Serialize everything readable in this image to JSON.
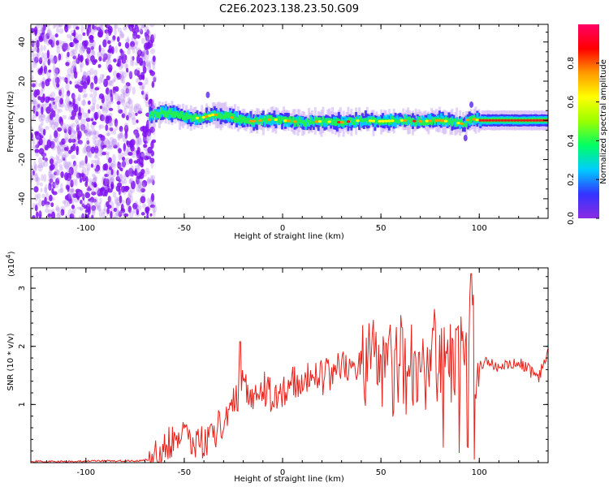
{
  "title": "C2E6.2023.138.23.50.G09",
  "chart_data": [
    {
      "type": "heatmap",
      "xlabel": "Height of straight line (km)",
      "ylabel": "Frequency (Hz)",
      "xlim": [
        -128,
        135
      ],
      "ylim": [
        -50,
        49
      ],
      "x_ticks": [
        -100,
        -50,
        0,
        50,
        100
      ],
      "y_ticks": [
        -40,
        -20,
        0,
        20,
        40
      ],
      "colorbar": {
        "label": "Normalized spectral amplitude",
        "range": [
          0,
          1
        ],
        "ticks": [
          "0.0",
          "0.2",
          "0.4",
          "0.6",
          "0.8"
        ],
        "colormap": [
          "#8a2be2",
          "#3333ff",
          "#00ccff",
          "#00ff66",
          "#99ff00",
          "#ffff00",
          "#ff9900",
          "#ff0000",
          "#ff0066"
        ]
      },
      "noise_region_km": [
        -128,
        -68
      ],
      "spectral_ridge": {
        "x": [
          -68,
          -60,
          -50,
          -42,
          -35,
          -28,
          -22,
          -15,
          -10,
          -5,
          0,
          5,
          10,
          20,
          30,
          40,
          50,
          60,
          70,
          80,
          88,
          92,
          95,
          100,
          110,
          120,
          135
        ],
        "freq_hz": [
          3,
          4,
          2,
          1,
          3,
          2,
          0.5,
          -0.5,
          0,
          0.5,
          0,
          -0.5,
          -1,
          -0.5,
          -1,
          0,
          -0.5,
          0,
          -0.5,
          0,
          -1,
          -2,
          1,
          0,
          0,
          0,
          0
        ]
      }
    },
    {
      "type": "line",
      "xlabel": "Height of straight line (km)",
      "ylabel": "SNR (10 * v/v)",
      "y_multiplier": "(x10",
      "y_multiplier_exp": "4",
      "y_multiplier_close": ")",
      "xlim": [
        -128,
        135
      ],
      "ylim": [
        0,
        3.35
      ],
      "x_ticks": [
        -100,
        -50,
        0,
        50,
        100
      ],
      "y_ticks": [
        1,
        2,
        3
      ],
      "color": "#e8221b",
      "series": [
        {
          "x": [
            -128,
            -110,
            -90,
            -75,
            -68,
            -62,
            -58,
            -54,
            -50,
            -46,
            -42,
            -38,
            -34,
            -30,
            -27,
            -24,
            -21,
            -18,
            -15,
            -12,
            -8,
            -4,
            0,
            5,
            10,
            15,
            20,
            25,
            30,
            35,
            40,
            45,
            48,
            52,
            56,
            60,
            64,
            68,
            72,
            76,
            80,
            84,
            88,
            92,
            94,
            96,
            98,
            100,
            104,
            110,
            115,
            120,
            125,
            130,
            135
          ],
          "y": [
            0.02,
            0.02,
            0.03,
            0.03,
            0.05,
            0.15,
            0.35,
            0.5,
            0.45,
            0.4,
            0.3,
            0.35,
            0.55,
            0.75,
            0.9,
            1.1,
            1.3,
            1.2,
            1.0,
            1.3,
            1.25,
            1.1,
            1.25,
            1.35,
            1.4,
            1.5,
            1.45,
            1.55,
            1.65,
            1.6,
            1.7,
            1.75,
            1.7,
            1.8,
            1.6,
            1.75,
            1.55,
            1.85,
            1.6,
            1.85,
            1.8,
            1.6,
            1.95,
            1.7,
            2.2,
            3.25,
            1.5,
            1.7,
            1.75,
            1.6,
            1.7,
            1.75,
            1.6,
            1.45,
            1.9
          ]
        }
      ]
    }
  ]
}
